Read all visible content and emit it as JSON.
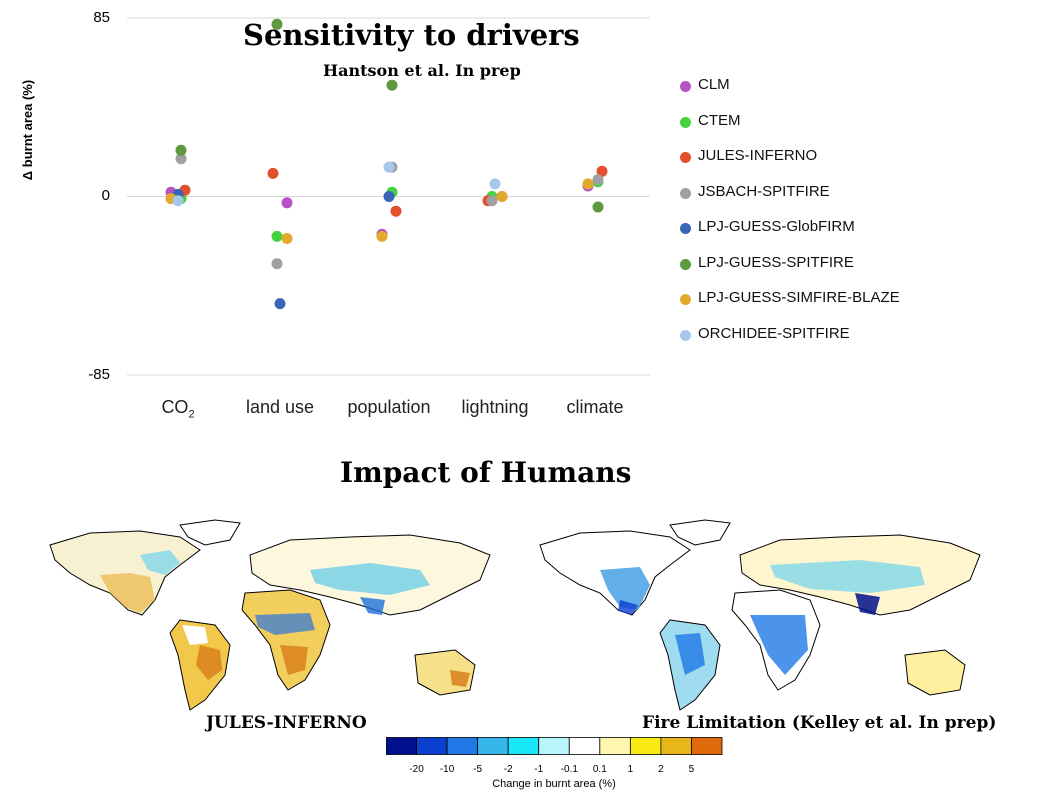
{
  "chart_data": {
    "type": "scatter",
    "title": "Sensitivity to  drivers",
    "subtitle": "Hantson et al. In prep",
    "ylabel": "Δ burnt area (%)",
    "yticks": [
      "85",
      "0",
      "-85"
    ],
    "ylim": [
      -85,
      85
    ],
    "categories": [
      "CO2",
      "land use",
      "population",
      "lightning",
      "climate"
    ],
    "grid": "horizontal",
    "legend_position": "right",
    "series": [
      {
        "name": "CLM",
        "color": "#b553c4",
        "values": [
          2,
          -3,
          -18,
          0,
          5
        ]
      },
      {
        "name": "CTEM",
        "color": "#45d23f",
        "values": [
          -1,
          -19,
          2,
          0,
          7
        ]
      },
      {
        "name": "JULES-INFERNO",
        "color": "#e4502d",
        "values": [
          3,
          11,
          -7,
          -2,
          12
        ]
      },
      {
        "name": "JSBACH-SPITFIRE",
        "color": "#a0a0a0",
        "values": [
          18,
          -32,
          14,
          -2,
          8
        ]
      },
      {
        "name": "LPJ-GUESS-GlobFIRM",
        "color": "#3a65b7",
        "values": [
          1,
          -51,
          0,
          null,
          null
        ]
      },
      {
        "name": "LPJ-GUESS-SPITFIRE",
        "color": "#5d9a3e",
        "values": [
          22,
          82,
          53,
          null,
          -5
        ]
      },
      {
        "name": "LPJ-GUESS-SIMFIRE-BLAZE",
        "color": "#e3a92d",
        "values": [
          -1,
          -20,
          -19,
          0,
          6
        ]
      },
      {
        "name": "ORCHIDEE-SPITFIRE",
        "color": "#a4c7ea",
        "values": [
          -2,
          null,
          14,
          6,
          null
        ]
      }
    ]
  },
  "section2": {
    "title": "Impact of Humans",
    "map_left_label": "JULES-INFERNO",
    "map_right_label": "Fire Limitation (Kelley et al. In prep)"
  },
  "colorbar": {
    "colors": [
      "#000f8c",
      "#0a3fcf",
      "#1f78e6",
      "#35b7ea",
      "#19e6f7",
      "#b8f6fb",
      "#ffffff",
      "#fff6b0",
      "#f8ea12",
      "#e8b51b",
      "#e06b0c"
    ],
    "ticks": [
      "-20",
      "-10",
      "-5",
      "-2",
      "-1",
      "-0.1",
      "0.1",
      "1",
      "2",
      "5"
    ],
    "label": "Change in burnt area (%)"
  }
}
